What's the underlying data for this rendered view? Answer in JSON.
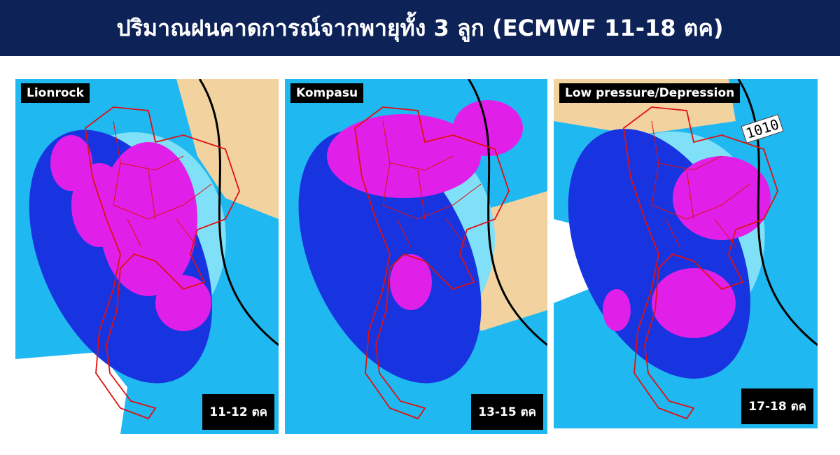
{
  "header": {
    "title": "ปริมาณฝนคาดการณ์จากพายุทั้ง 3 ลูก (ECMWF 11-18 ตค)"
  },
  "panels": [
    {
      "name": "Lionrock",
      "date": "11-12 ตค"
    },
    {
      "name": "Kompasu",
      "date": "13-15 ตค"
    },
    {
      "name": "Low pressure/Depression",
      "date": "17-18 ตค",
      "contour_label": "1010"
    }
  ]
}
